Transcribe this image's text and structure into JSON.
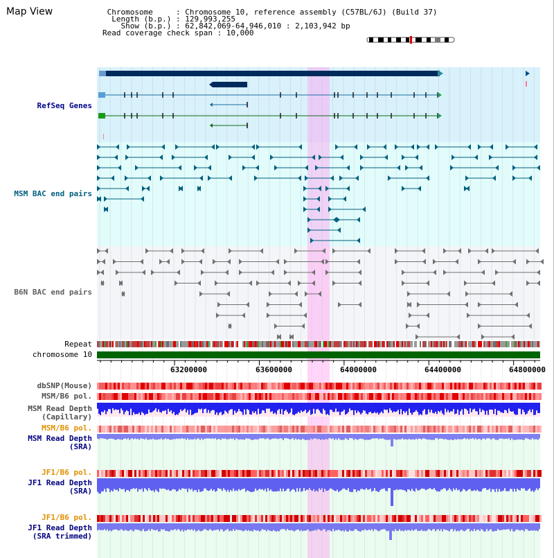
{
  "header": {
    "title": "Map View",
    "chromosome_line": " Chromosome     : Chromosome 10, reference assembly (C57BL/6J) (Build 37)",
    "length_line": "  Length (b.p.) : 129,993,255",
    "show_line": "    Show (b.p.) : 62,842,069-64,946,010 : 2,103,942 bp",
    "span_line": "Read coverage check span : 10,000"
  },
  "tracks": {
    "refseq": "RefSeq Genes",
    "msm_bac": "MSM BAC end pairs",
    "b6n_bac": "B6N BAC end pairs",
    "repeat": "Repeat",
    "chromosome": "chromosome 10",
    "dbsnp": "dbSNP(Mouse)",
    "msm_b6_pol_1": "MSM/B6 pol.",
    "msm_read_depth_cap_1": "MSM Read Depth",
    "msm_read_depth_cap_2": "(Capillary)",
    "msm_b6_pol_2": "MSM/B6 pol.",
    "msm_read_depth_sra_1": "MSM Read Depth",
    "msm_read_depth_sra_2": "(SRA)",
    "jf1_b6_pol_1": "JF1/B6 pol.",
    "jf1_read_depth_sra_1": "JF1 Read Depth",
    "jf1_read_depth_sra_2": "(SRA)",
    "jf1_b6_pol_2": "JF1/B6 pol.",
    "jf1_read_depth_trim_1": "JF1 Read Depth",
    "jf1_read_depth_trim_2": "(SRA trimmed)"
  },
  "axis": {
    "ticks": [
      "63200000",
      "63600000",
      "64000000",
      "64400000",
      "64800000"
    ]
  },
  "colors": {
    "navy": "#002a5c",
    "refseq_label": "#00008b",
    "msm_label": "#00607e",
    "b6n_label": "#606060",
    "pol_label": "#e09000",
    "depth_label": "#000080",
    "highlight": "#ff9bf0",
    "chromosome_green": "#006400"
  }
}
